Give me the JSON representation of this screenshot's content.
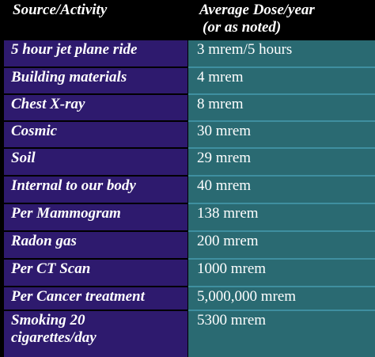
{
  "header": {
    "col1": "Source/Activity",
    "col2_line1": "Average Dose/year",
    "col2_line2": "(or as noted)"
  },
  "rows": [
    {
      "source": "5 hour jet plane ride",
      "dose": "3 mrem/5 hours"
    },
    {
      "source": "Building materials",
      "dose": "4 mrem"
    },
    {
      "source": "Chest X-ray",
      "dose": "8 mrem"
    },
    {
      "source": "Cosmic",
      "dose": "30 mrem"
    },
    {
      "source": "Soil",
      "dose": "29 mrem"
    },
    {
      "source": "Internal to our body",
      "dose": "40 mrem"
    },
    {
      "source": "Per Mammogram",
      "dose": "138 mrem"
    },
    {
      "source": "Radon gas",
      "dose": "200 mrem"
    },
    {
      "source": "Per CT Scan",
      "dose": "1000 mrem"
    },
    {
      "source": "Per Cancer treatment",
      "dose": "5,000,000 mrem"
    },
    {
      "source": "Smoking 20 cigarettes/day",
      "dose": "5300 mrem"
    }
  ]
}
